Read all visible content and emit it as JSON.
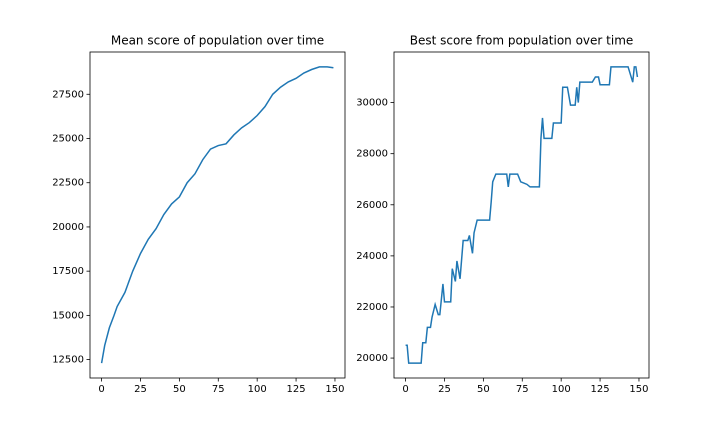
{
  "chart_data": [
    {
      "type": "line",
      "title": "Mean score of population over time",
      "x": [
        0,
        2,
        5,
        8,
        10,
        15,
        20,
        25,
        30,
        35,
        40,
        45,
        50,
        55,
        60,
        65,
        70,
        75,
        80,
        85,
        90,
        95,
        100,
        105,
        110,
        115,
        120,
        125,
        130,
        135,
        140,
        145,
        149
      ],
      "values": [
        12300,
        13300,
        14300,
        15000,
        15500,
        16300,
        17500,
        18500,
        19300,
        19900,
        20700,
        21300,
        21700,
        22500,
        23000,
        23800,
        24400,
        24600,
        24700,
        25200,
        25600,
        25900,
        26300,
        26800,
        27500,
        27900,
        28200,
        28400,
        28700,
        28900,
        29050,
        29050,
        29000
      ],
      "color": "#1f77b4",
      "xlim": [
        -7.45,
        156.45
      ],
      "xticks": [
        0,
        25,
        50,
        75,
        100,
        125,
        150
      ],
      "ylim": [
        11460,
        29890
      ],
      "yticks": [
        12500,
        15000,
        17500,
        20000,
        22500,
        25000,
        27500
      ]
    },
    {
      "type": "line",
      "title": "Best score from population over time",
      "x": [
        0,
        1,
        2,
        10,
        11,
        13,
        14,
        16,
        17,
        19,
        21,
        22,
        24,
        25,
        29,
        30,
        32,
        33,
        35,
        37,
        40,
        41,
        43,
        44,
        46,
        54,
        55,
        56,
        58,
        65,
        66,
        67,
        72,
        74,
        78,
        80,
        86,
        87,
        88,
        89,
        94,
        95,
        100,
        101,
        104,
        106,
        109,
        110,
        111,
        112,
        120,
        122,
        124,
        125,
        131,
        132,
        143,
        145,
        146,
        147,
        148,
        149
      ],
      "values": [
        20500,
        20500,
        19800,
        19800,
        20600,
        20600,
        21200,
        21200,
        21600,
        22100,
        21700,
        21700,
        22900,
        22200,
        22200,
        23500,
        23000,
        23800,
        23100,
        24600,
        24600,
        24800,
        24100,
        24900,
        25400,
        25400,
        26100,
        26900,
        27200,
        27200,
        26700,
        27200,
        27200,
        26900,
        26800,
        26700,
        26700,
        28600,
        29400,
        28600,
        28600,
        29200,
        29200,
        30600,
        30600,
        29900,
        29900,
        30600,
        30000,
        30800,
        30800,
        31000,
        31000,
        30700,
        30700,
        31400,
        31400,
        31000,
        30800,
        31400,
        31400,
        31000
      ],
      "color": "#1f77b4",
      "xlim": [
        -7.45,
        156.45
      ],
      "xticks": [
        0,
        25,
        50,
        75,
        100,
        125,
        150
      ],
      "ylim": [
        19220,
        31980
      ],
      "yticks": [
        20000,
        22000,
        24000,
        26000,
        28000,
        30000
      ]
    }
  ]
}
